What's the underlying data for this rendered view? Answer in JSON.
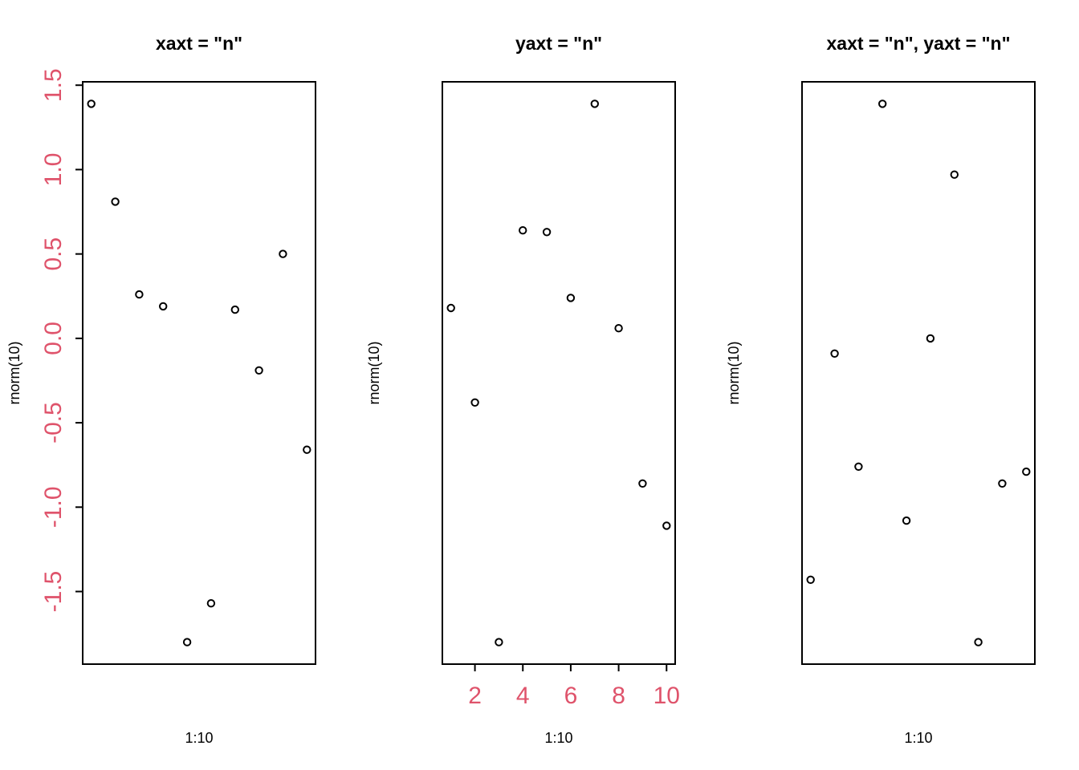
{
  "accent_color": "#DF536B",
  "chart_data": [
    {
      "type": "scatter",
      "title": "xaxt = \"n\"",
      "xlabel": "1:10",
      "ylabel": "rnorm(10)",
      "x": [
        1,
        2,
        3,
        4,
        5,
        6,
        7,
        8,
        9,
        10
      ],
      "y": [
        1.39,
        0.81,
        0.26,
        0.19,
        -1.8,
        -1.57,
        0.17,
        -0.19,
        0.5,
        -0.66
      ],
      "xlim": [
        0.64,
        10.36
      ],
      "ylim": [
        -1.93,
        1.52
      ],
      "show_x_axis": false,
      "show_y_axis": true,
      "y_ticks": [
        -1.5,
        -1.0,
        -0.5,
        0.0,
        0.5,
        1.0,
        1.5
      ],
      "y_tick_labels": [
        "-1.5",
        "-1.0",
        "-0.5",
        "0.0",
        "0.5",
        "1.0",
        "1.5"
      ],
      "x_ticks": [],
      "x_tick_labels": []
    },
    {
      "type": "scatter",
      "title": "yaxt = \"n\"",
      "xlabel": "1:10",
      "ylabel": "rnorm(10)",
      "x": [
        1,
        2,
        3,
        4,
        5,
        6,
        7,
        8,
        9,
        10
      ],
      "y": [
        0.18,
        -0.38,
        -1.8,
        0.64,
        0.63,
        0.24,
        1.39,
        0.06,
        -0.86,
        -1.11
      ],
      "xlim": [
        0.64,
        10.36
      ],
      "ylim": [
        -1.93,
        1.52
      ],
      "show_x_axis": true,
      "show_y_axis": false,
      "x_ticks": [
        2,
        4,
        6,
        8,
        10
      ],
      "x_tick_labels": [
        "2",
        "4",
        "6",
        "8",
        "10"
      ],
      "y_ticks": [],
      "y_tick_labels": []
    },
    {
      "type": "scatter",
      "title": "xaxt = \"n\", yaxt = \"n\"",
      "xlabel": "1:10",
      "ylabel": "rnorm(10)",
      "x": [
        1,
        2,
        3,
        4,
        5,
        6,
        7,
        8,
        9,
        10
      ],
      "y": [
        -1.43,
        -0.09,
        -0.76,
        1.39,
        -1.08,
        0.0,
        0.97,
        -1.8,
        -0.86,
        -0.79
      ],
      "xlim": [
        0.64,
        10.36
      ],
      "ylim": [
        -1.93,
        1.52
      ],
      "show_x_axis": false,
      "show_y_axis": false,
      "x_ticks": [],
      "x_tick_labels": [],
      "y_ticks": [],
      "y_tick_labels": []
    }
  ]
}
